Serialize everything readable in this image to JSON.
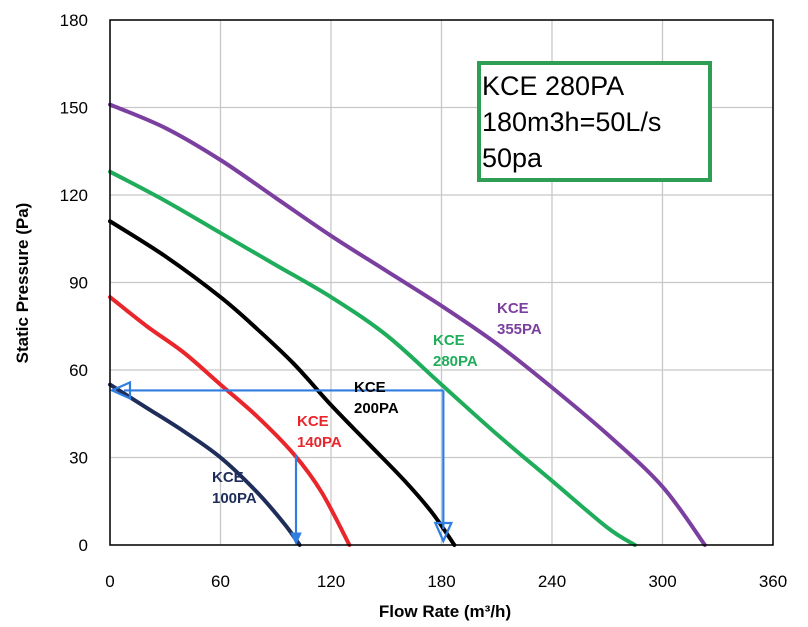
{
  "chart_data": {
    "type": "line",
    "title": "",
    "xlabel": "Flow Rate (m³/h)",
    "ylabel": "Static Pressure (Pa)",
    "xlim": [
      0,
      360
    ],
    "ylim": [
      0,
      180
    ],
    "xticks": [
      0,
      60,
      120,
      180,
      240,
      300,
      360
    ],
    "yticks": [
      0,
      30,
      60,
      90,
      120,
      150,
      180
    ],
    "grid": true,
    "series": [
      {
        "name": "KCE 100PA",
        "label_lines": [
          "KCE",
          "100PA"
        ],
        "color": "#1f2d5a",
        "x": [
          0,
          20,
          40,
          60,
          80,
          95,
          103
        ],
        "y": [
          55,
          47,
          39,
          30,
          18,
          7,
          0
        ]
      },
      {
        "name": "KCE 140PA",
        "label_lines": [
          "KCE",
          "140PA"
        ],
        "color": "#e8262b",
        "x": [
          0,
          20,
          40,
          60,
          80,
          100,
          115,
          130
        ],
        "y": [
          85,
          75,
          66,
          55,
          44,
          31,
          18,
          0
        ]
      },
      {
        "name": "KCE 200PA",
        "label_lines": [
          "KCE",
          "200PA"
        ],
        "color": "#000000",
        "x": [
          0,
          30,
          60,
          80,
          100,
          120,
          140,
          160,
          175,
          187
        ],
        "y": [
          111,
          99,
          85,
          74,
          62,
          48,
          35,
          22,
          11,
          0
        ]
      },
      {
        "name": "KCE 280PA",
        "label_lines": [
          "KCE",
          "280PA"
        ],
        "color": "#1fad5b",
        "x": [
          0,
          30,
          60,
          90,
          120,
          150,
          180,
          210,
          240,
          270,
          285
        ],
        "y": [
          128,
          118,
          107,
          96,
          85,
          72,
          55,
          38,
          22,
          6,
          0
        ]
      },
      {
        "name": "KCE 355PA",
        "label_lines": [
          "KCE",
          "355PA"
        ],
        "color": "#7b3fa0",
        "x": [
          0,
          30,
          60,
          90,
          120,
          150,
          180,
          210,
          240,
          270,
          300,
          323
        ],
        "y": [
          151,
          143,
          132,
          119,
          106,
          94,
          82,
          69,
          54,
          38,
          20,
          0
        ]
      }
    ],
    "annotations": {
      "box_lines": [
        "KCE 280PA",
        "180m3h=50L/s",
        "50pa"
      ],
      "box_color": "#2e9e55",
      "arrow_color": "#2f7ee0",
      "operating_point": {
        "x": 181,
        "y": 53
      },
      "secondary_point": {
        "x": 101,
        "y": 31
      }
    }
  }
}
